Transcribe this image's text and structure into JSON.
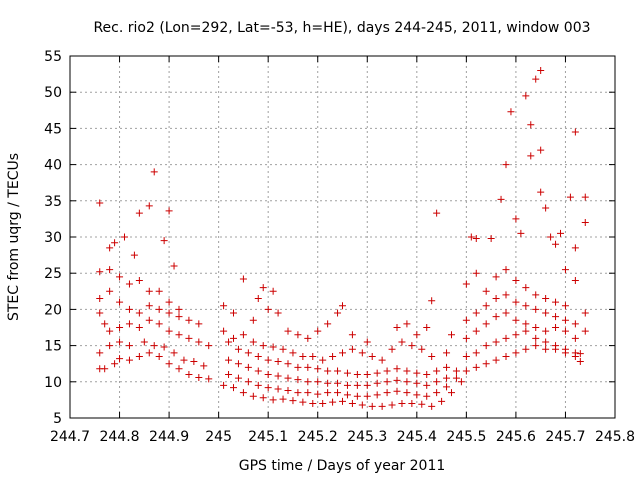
{
  "chart_data": {
    "type": "scatter",
    "title": "Rec. rio2 (Lon=292, Lat=-53, h=HE), days 244-245, 2011, window 003",
    "xlabel": "GPS time / Days of year 2011",
    "ylabel": "STEC from uqrg / TECUs",
    "xlim": [
      244.7,
      245.8
    ],
    "ylim": [
      5,
      55
    ],
    "x_ticks": [
      244.7,
      244.8,
      244.9,
      245.0,
      245.1,
      245.2,
      245.3,
      245.4,
      245.5,
      245.6,
      245.7,
      245.8
    ],
    "x_tick_labels": [
      "244.7",
      "244.8",
      "244.9",
      "245",
      "245.1",
      "245.2",
      "245.3",
      "245.4",
      "245.5",
      "245.6",
      "245.7",
      "245.8"
    ],
    "y_ticks": [
      5,
      10,
      15,
      20,
      25,
      30,
      35,
      40,
      45,
      50,
      55
    ],
    "y_tick_labels": [
      "5",
      "10",
      "15",
      "20",
      "25",
      "30",
      "35",
      "40",
      "45",
      "50",
      "55"
    ],
    "grid": true,
    "marker": "+",
    "color": "#cc0000",
    "points": [
      [
        244.76,
        11.8
      ],
      [
        244.77,
        11.8
      ],
      [
        244.79,
        12.5
      ],
      [
        244.8,
        13.2
      ],
      [
        244.82,
        13.0
      ],
      [
        244.84,
        13.5
      ],
      [
        244.86,
        14.0
      ],
      [
        244.88,
        13.5
      ],
      [
        244.9,
        12.5
      ],
      [
        244.92,
        11.8
      ],
      [
        244.94,
        11.0
      ],
      [
        244.96,
        10.6
      ],
      [
        244.98,
        10.4
      ],
      [
        244.76,
        14.0
      ],
      [
        244.78,
        15.0
      ],
      [
        244.8,
        15.5
      ],
      [
        244.82,
        15.0
      ],
      [
        244.85,
        15.5
      ],
      [
        244.87,
        15.0
      ],
      [
        244.89,
        14.8
      ],
      [
        244.91,
        14.0
      ],
      [
        244.93,
        13.0
      ],
      [
        244.95,
        12.8
      ],
      [
        244.97,
        12.2
      ],
      [
        244.76,
        19.5
      ],
      [
        244.77,
        18.0
      ],
      [
        244.78,
        17.0
      ],
      [
        244.8,
        17.5
      ],
      [
        244.82,
        18.0
      ],
      [
        244.84,
        17.5
      ],
      [
        244.86,
        18.5
      ],
      [
        244.88,
        18.0
      ],
      [
        244.9,
        17.0
      ],
      [
        244.92,
        16.5
      ],
      [
        244.94,
        16.0
      ],
      [
        244.96,
        15.5
      ],
      [
        244.98,
        15.0
      ],
      [
        244.76,
        21.5
      ],
      [
        244.78,
        22.5
      ],
      [
        244.8,
        21.0
      ],
      [
        244.82,
        20.0
      ],
      [
        244.84,
        19.5
      ],
      [
        244.86,
        20.5
      ],
      [
        244.88,
        20.0
      ],
      [
        244.9,
        19.5
      ],
      [
        244.92,
        19.0
      ],
      [
        244.94,
        18.5
      ],
      [
        244.96,
        18.0
      ],
      [
        244.76,
        25.2
      ],
      [
        244.78,
        25.5
      ],
      [
        244.8,
        24.5
      ],
      [
        244.82,
        23.5
      ],
      [
        244.84,
        24.0
      ],
      [
        244.86,
        22.5
      ],
      [
        244.88,
        22.5
      ],
      [
        244.9,
        21.0
      ],
      [
        244.92,
        20.0
      ],
      [
        244.76,
        34.7
      ],
      [
        244.78,
        28.5
      ],
      [
        244.79,
        29.2
      ],
      [
        244.81,
        30.0
      ],
      [
        244.83,
        27.5
      ],
      [
        244.84,
        33.3
      ],
      [
        244.86,
        34.3
      ],
      [
        244.87,
        39.0
      ],
      [
        244.89,
        29.5
      ],
      [
        244.9,
        33.6
      ],
      [
        244.91,
        26.0
      ],
      [
        245.01,
        9.5
      ],
      [
        245.03,
        9.2
      ],
      [
        245.05,
        8.5
      ],
      [
        245.07,
        8.0
      ],
      [
        245.09,
        7.8
      ],
      [
        245.11,
        7.5
      ],
      [
        245.13,
        7.6
      ],
      [
        245.15,
        7.4
      ],
      [
        245.17,
        7.2
      ],
      [
        245.19,
        7.0
      ],
      [
        245.21,
        7.0
      ],
      [
        245.23,
        7.2
      ],
      [
        245.25,
        7.3
      ],
      [
        245.27,
        7.0
      ],
      [
        245.29,
        6.8
      ],
      [
        245.31,
        6.6
      ],
      [
        245.33,
        6.6
      ],
      [
        245.35,
        6.8
      ],
      [
        245.37,
        7.0
      ],
      [
        245.39,
        7.0
      ],
      [
        245.41,
        6.9
      ],
      [
        245.43,
        6.6
      ],
      [
        245.45,
        7.3
      ],
      [
        245.47,
        8.5
      ],
      [
        245.49,
        10.0
      ],
      [
        245.02,
        11.0
      ],
      [
        245.04,
        10.5
      ],
      [
        245.06,
        10.0
      ],
      [
        245.08,
        9.5
      ],
      [
        245.1,
        9.2
      ],
      [
        245.12,
        9.0
      ],
      [
        245.14,
        8.8
      ],
      [
        245.16,
        8.5
      ],
      [
        245.18,
        8.5
      ],
      [
        245.2,
        8.3
      ],
      [
        245.22,
        8.5
      ],
      [
        245.24,
        8.5
      ],
      [
        245.26,
        8.2
      ],
      [
        245.28,
        8.0
      ],
      [
        245.3,
        8.0
      ],
      [
        245.32,
        8.2
      ],
      [
        245.34,
        8.5
      ],
      [
        245.36,
        8.7
      ],
      [
        245.38,
        8.5
      ],
      [
        245.4,
        8.2
      ],
      [
        245.42,
        8.0
      ],
      [
        245.44,
        8.5
      ],
      [
        245.46,
        9.3
      ],
      [
        245.48,
        10.5
      ],
      [
        245.02,
        13.0
      ],
      [
        245.04,
        12.5
      ],
      [
        245.06,
        12.0
      ],
      [
        245.08,
        11.5
      ],
      [
        245.1,
        11.0
      ],
      [
        245.12,
        10.8
      ],
      [
        245.14,
        10.5
      ],
      [
        245.16,
        10.3
      ],
      [
        245.18,
        10.0
      ],
      [
        245.2,
        10.0
      ],
      [
        245.22,
        9.8
      ],
      [
        245.24,
        9.8
      ],
      [
        245.26,
        9.5
      ],
      [
        245.28,
        9.5
      ],
      [
        245.3,
        9.5
      ],
      [
        245.32,
        9.8
      ],
      [
        245.34,
        10.0
      ],
      [
        245.36,
        10.2
      ],
      [
        245.38,
        10.0
      ],
      [
        245.4,
        9.8
      ],
      [
        245.42,
        9.5
      ],
      [
        245.44,
        10.0
      ],
      [
        245.46,
        10.5
      ],
      [
        245.48,
        11.5
      ],
      [
        245.02,
        15.5
      ],
      [
        245.04,
        14.5
      ],
      [
        245.06,
        14.0
      ],
      [
        245.08,
        13.5
      ],
      [
        245.1,
        13.0
      ],
      [
        245.12,
        12.8
      ],
      [
        245.14,
        12.5
      ],
      [
        245.16,
        12.0
      ],
      [
        245.18,
        12.0
      ],
      [
        245.2,
        11.8
      ],
      [
        245.22,
        11.5
      ],
      [
        245.24,
        11.5
      ],
      [
        245.26,
        11.2
      ],
      [
        245.28,
        11.0
      ],
      [
        245.3,
        11.0
      ],
      [
        245.32,
        11.2
      ],
      [
        245.34,
        11.5
      ],
      [
        245.36,
        11.8
      ],
      [
        245.38,
        11.5
      ],
      [
        245.4,
        11.2
      ],
      [
        245.42,
        11.0
      ],
      [
        245.44,
        11.5
      ],
      [
        245.46,
        12.0
      ],
      [
        245.01,
        17.0
      ],
      [
        245.03,
        16.0
      ],
      [
        245.05,
        16.5
      ],
      [
        245.07,
        15.5
      ],
      [
        245.09,
        15.0
      ],
      [
        245.11,
        14.8
      ],
      [
        245.13,
        14.5
      ],
      [
        245.15,
        14.0
      ],
      [
        245.17,
        13.5
      ],
      [
        245.19,
        13.5
      ],
      [
        245.21,
        13.0
      ],
      [
        245.23,
        13.5
      ],
      [
        245.25,
        14.0
      ],
      [
        245.27,
        14.5
      ],
      [
        245.29,
        14.0
      ],
      [
        245.31,
        13.5
      ],
      [
        245.33,
        13.0
      ],
      [
        245.35,
        14.5
      ],
      [
        245.37,
        15.5
      ],
      [
        245.39,
        15.0
      ],
      [
        245.41,
        14.5
      ],
      [
        245.43,
        13.5
      ],
      [
        245.01,
        20.5
      ],
      [
        245.03,
        19.5
      ],
      [
        245.05,
        24.2
      ],
      [
        245.07,
        18.5
      ],
      [
        245.08,
        21.5
      ],
      [
        245.09,
        23.0
      ],
      [
        245.1,
        20.0
      ],
      [
        245.11,
        22.5
      ],
      [
        245.12,
        19.5
      ],
      [
        245.14,
        17.0
      ],
      [
        245.16,
        16.5
      ],
      [
        245.18,
        16.0
      ],
      [
        245.2,
        17.0
      ],
      [
        245.22,
        18.0
      ],
      [
        245.24,
        19.5
      ],
      [
        245.25,
        20.5
      ],
      [
        245.27,
        16.5
      ],
      [
        245.3,
        15.5
      ],
      [
        245.36,
        17.5
      ],
      [
        245.38,
        18.0
      ],
      [
        245.4,
        16.5
      ],
      [
        245.42,
        17.5
      ],
      [
        245.43,
        21.2
      ],
      [
        245.44,
        33.3
      ],
      [
        245.46,
        14.0
      ],
      [
        245.47,
        16.5
      ],
      [
        245.5,
        11.5
      ],
      [
        245.52,
        12.0
      ],
      [
        245.54,
        12.5
      ],
      [
        245.56,
        13.0
      ],
      [
        245.58,
        13.5
      ],
      [
        245.6,
        14.0
      ],
      [
        245.62,
        14.5
      ],
      [
        245.64,
        15.0
      ],
      [
        245.66,
        14.5
      ],
      [
        245.68,
        14.5
      ],
      [
        245.7,
        14.0
      ],
      [
        245.72,
        13.5
      ],
      [
        245.73,
        12.8
      ],
      [
        245.5,
        13.5
      ],
      [
        245.52,
        14.0
      ],
      [
        245.54,
        15.0
      ],
      [
        245.56,
        15.5
      ],
      [
        245.58,
        16.0
      ],
      [
        245.6,
        16.5
      ],
      [
        245.62,
        17.0
      ],
      [
        245.64,
        16.0
      ],
      [
        245.66,
        15.5
      ],
      [
        245.68,
        15.0
      ],
      [
        245.7,
        14.5
      ],
      [
        245.72,
        14.0
      ],
      [
        245.73,
        13.9
      ],
      [
        245.5,
        16.0
      ],
      [
        245.52,
        17.0
      ],
      [
        245.54,
        18.0
      ],
      [
        245.56,
        19.0
      ],
      [
        245.58,
        19.5
      ],
      [
        245.6,
        18.5
      ],
      [
        245.62,
        18.0
      ],
      [
        245.64,
        17.5
      ],
      [
        245.66,
        17.0
      ],
      [
        245.68,
        17.5
      ],
      [
        245.7,
        17.0
      ],
      [
        245.72,
        16.0
      ],
      [
        245.74,
        17.0
      ],
      [
        245.5,
        18.5
      ],
      [
        245.52,
        19.5
      ],
      [
        245.54,
        20.5
      ],
      [
        245.56,
        21.5
      ],
      [
        245.58,
        22.0
      ],
      [
        245.6,
        21.0
      ],
      [
        245.62,
        20.5
      ],
      [
        245.64,
        20.0
      ],
      [
        245.66,
        19.5
      ],
      [
        245.68,
        19.0
      ],
      [
        245.7,
        18.5
      ],
      [
        245.72,
        18.0
      ],
      [
        245.74,
        19.5
      ],
      [
        245.5,
        23.5
      ],
      [
        245.52,
        25.0
      ],
      [
        245.54,
        22.5
      ],
      [
        245.56,
        24.5
      ],
      [
        245.58,
        25.5
      ],
      [
        245.6,
        24.0
      ],
      [
        245.62,
        23.0
      ],
      [
        245.64,
        22.0
      ],
      [
        245.66,
        21.5
      ],
      [
        245.68,
        21.0
      ],
      [
        245.7,
        20.5
      ],
      [
        245.72,
        24.0
      ],
      [
        245.51,
        30.0
      ],
      [
        245.52,
        29.8
      ],
      [
        245.55,
        29.8
      ],
      [
        245.57,
        35.2
      ],
      [
        245.58,
        40.0
      ],
      [
        245.59,
        47.3
      ],
      [
        245.6,
        32.5
      ],
      [
        245.61,
        30.5
      ],
      [
        245.62,
        49.5
      ],
      [
        245.63,
        41.2
      ],
      [
        245.63,
        45.5
      ],
      [
        245.64,
        51.8
      ],
      [
        245.65,
        53.0
      ],
      [
        245.65,
        42.0
      ],
      [
        245.65,
        36.2
      ],
      [
        245.66,
        34.0
      ],
      [
        245.67,
        30.0
      ],
      [
        245.68,
        29.0
      ],
      [
        245.69,
        30.5
      ],
      [
        245.7,
        25.5
      ],
      [
        245.71,
        35.5
      ],
      [
        245.72,
        44.5
      ],
      [
        245.72,
        28.5
      ],
      [
        245.74,
        35.5
      ],
      [
        245.74,
        32.0
      ]
    ]
  }
}
